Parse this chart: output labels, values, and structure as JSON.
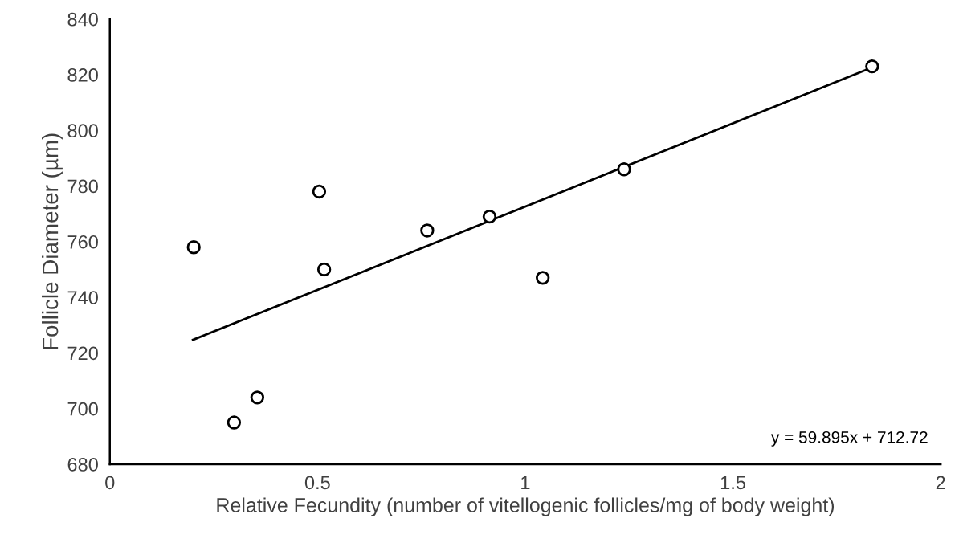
{
  "chart_data": {
    "type": "scatter",
    "xlabel": "Relative Fecundity (number of vitellogenic follicles/mg of body weight)",
    "ylabel": "Follicle Diameter (µm)",
    "xlim": [
      0,
      2
    ],
    "xticks": [
      0,
      0.5,
      1,
      1.5,
      2
    ],
    "ylim": [
      680,
      840
    ],
    "yticks": [
      680,
      700,
      720,
      740,
      760,
      780,
      800,
      820,
      840
    ],
    "grid": false,
    "legend": false,
    "annotations": [
      "y = 59.895x + 712.72"
    ],
    "series": [
      {
        "color": "#000000",
        "marker": "circle",
        "x": [
          0.202,
          0.299,
          0.355,
          0.504,
          0.516,
          0.764,
          0.914,
          1.042,
          1.238,
          1.835
        ],
        "values": [
          758,
          695,
          704,
          778,
          750,
          764,
          769,
          747,
          786,
          823
        ]
      },
      {
        "type": "line",
        "color": "#000000",
        "marker": "none",
        "line_style": "solid",
        "x": [
          0.2,
          1.83
        ],
        "values": [
          724.7,
          822.3
        ]
      }
    ]
  }
}
